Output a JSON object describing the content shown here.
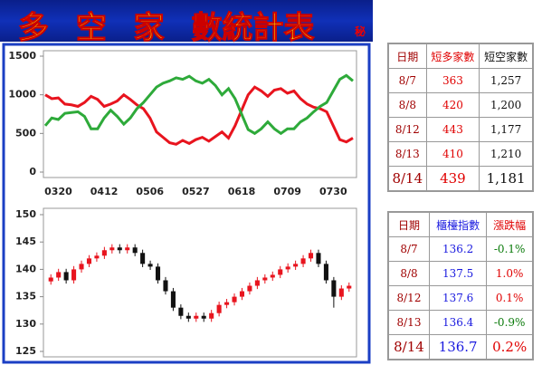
{
  "header": {
    "title": "多 空 家 數統計表",
    "badge": "秘"
  },
  "chart_data": [
    {
      "type": "line",
      "categories": [
        null,
        null,
        "0320",
        null,
        null,
        null,
        null,
        null,
        null,
        "0412",
        null,
        null,
        null,
        null,
        null,
        null,
        "0506",
        null,
        null,
        null,
        null,
        null,
        null,
        "0527",
        null,
        null,
        null,
        null,
        null,
        null,
        "0618",
        null,
        null,
        null,
        null,
        null,
        null,
        "0709",
        null,
        null,
        null,
        null,
        null,
        null,
        "0730",
        null,
        null,
        null
      ],
      "series": [
        {
          "color": "#e8141e",
          "values": [
            1000,
            950,
            960,
            880,
            870,
            850,
            900,
            980,
            940,
            850,
            880,
            920,
            1000,
            940,
            870,
            820,
            700,
            520,
            450,
            380,
            360,
            410,
            370,
            420,
            450,
            400,
            460,
            520,
            440,
            600,
            800,
            1000,
            1100,
            1050,
            980,
            1060,
            1080,
            1020,
            1050,
            950,
            880,
            840,
            820,
            780,
            600,
            420,
            390,
            440
          ]
        },
        {
          "color": "#2eaa3a",
          "values": [
            600,
            700,
            680,
            760,
            770,
            780,
            720,
            560,
            560,
            700,
            800,
            720,
            620,
            700,
            820,
            900,
            1000,
            1100,
            1150,
            1180,
            1220,
            1200,
            1240,
            1180,
            1150,
            1200,
            1120,
            1000,
            1080,
            950,
            750,
            550,
            500,
            560,
            650,
            560,
            500,
            560,
            560,
            650,
            700,
            780,
            850,
            900,
            1050,
            1200,
            1250,
            1180
          ]
        }
      ],
      "ylim": [
        0,
        1500
      ],
      "yticks": [
        0,
        500,
        1000,
        1500
      ],
      "grid": false
    },
    {
      "type": "candlestick",
      "open": [
        137.8,
        138.5,
        139.5,
        138,
        140,
        141,
        142,
        142.5,
        143.5,
        144,
        143.5,
        144,
        143,
        141,
        140.5,
        138,
        136,
        133,
        131.5,
        131,
        131.5,
        131,
        132,
        133.5,
        134,
        135,
        136,
        137,
        138,
        138.5,
        139,
        140,
        140.5,
        141,
        142,
        143,
        141,
        138,
        135,
        136.5
      ],
      "high": [
        139.1,
        140.1,
        140.1,
        140.6,
        141.6,
        142.6,
        143.1,
        144.1,
        144.6,
        144.6,
        144.6,
        144.6,
        143.6,
        141.6,
        141.1,
        138.6,
        136.6,
        133.6,
        132.1,
        132.1,
        132.1,
        132.6,
        134.1,
        134.6,
        135.6,
        136.6,
        137.6,
        138.6,
        139.1,
        139.6,
        140.6,
        141.1,
        141.6,
        142.6,
        143.6,
        143.6,
        141.6,
        138.6,
        137.1,
        137.6
      ],
      "low": [
        137.2,
        137.9,
        137.4,
        137.4,
        139.4,
        140.4,
        141.4,
        141.9,
        142.9,
        142.9,
        142.9,
        142.4,
        140.4,
        139.9,
        137.4,
        135.4,
        132.4,
        130.9,
        130.4,
        130.4,
        130.4,
        130.4,
        131.4,
        132.9,
        133.4,
        134.4,
        135.4,
        136.4,
        137.4,
        137.9,
        138.4,
        139.4,
        139.9,
        140.4,
        141.4,
        140.4,
        137.4,
        133,
        134.4,
        135.9
      ],
      "close": [
        138.5,
        139.5,
        138,
        140,
        141,
        142,
        142.5,
        143.5,
        144,
        143.5,
        144,
        143,
        141,
        140.5,
        138,
        136,
        133,
        131.5,
        131,
        131.5,
        131,
        132,
        133.5,
        134,
        135,
        136,
        137,
        138,
        138.5,
        139,
        140,
        140.5,
        141,
        142,
        143,
        141,
        138,
        135,
        136.5,
        137
      ],
      "up_color": "#e8141e",
      "down_color": "#111111",
      "ylim": [
        125,
        150
      ],
      "yticks": [
        125,
        130,
        135,
        140,
        145,
        150
      ],
      "grid": false
    }
  ],
  "tables": [
    {
      "header": [
        "日期",
        "短多家數",
        "短空家數"
      ],
      "rows": [
        [
          "8/7",
          "363",
          "1,257"
        ],
        [
          "8/8",
          "420",
          "1,200"
        ],
        [
          "8/12",
          "443",
          "1,177"
        ],
        [
          "8/13",
          "410",
          "1,210"
        ],
        [
          "8/14",
          "439",
          "1,181"
        ]
      ]
    },
    {
      "header": [
        "日期",
        "櫃檯指數",
        "漲跌幅"
      ],
      "rows": [
        [
          "8/7",
          "136.2",
          "-0.1%"
        ],
        [
          "8/8",
          "137.5",
          "1.0%"
        ],
        [
          "8/12",
          "137.6",
          "0.1%"
        ],
        [
          "8/13",
          "136.4",
          "-0.9%"
        ],
        [
          "8/14",
          "136.7",
          "0.2%"
        ]
      ]
    }
  ]
}
